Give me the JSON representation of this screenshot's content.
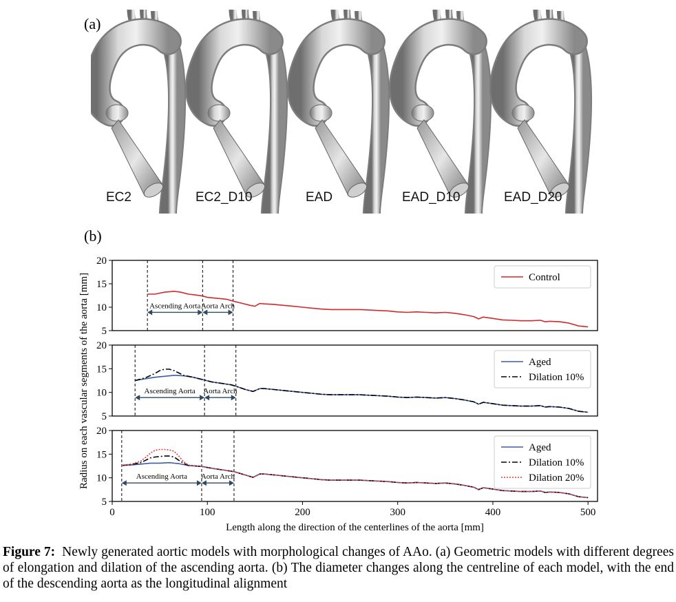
{
  "panel_a_label": "(a)",
  "panel_b_label": "(b)",
  "models": [
    "EC2",
    "EC2_D10",
    "EAD",
    "EAD_D10",
    "EAD_D20"
  ],
  "caption": {
    "figure_label": "Figure 7:",
    "text": "Newly generated aortic models with morphological changes of AAo. (a) Geometric models with different degrees of elongation and dilation of the ascending aorta. (b) The diameter changes along the centreline of each model, with the end of the descending aorta as the longitudinal alignment"
  },
  "chart_data": [
    {
      "type": "line",
      "xlim": [
        0,
        510
      ],
      "ylim": [
        5,
        20
      ],
      "yticks": [
        5,
        10,
        15,
        20
      ],
      "xticks": [],
      "grid": false,
      "legend_position": "top-right",
      "vlines": [
        37,
        95,
        127
      ],
      "annotations": [
        {
          "text": "Ascending Aorta",
          "x_from": 37,
          "x_to": 95
        },
        {
          "text": "Aorta Arch",
          "x_from": 95,
          "x_to": 127
        }
      ],
      "series": [
        {
          "name": "Control",
          "color": "#d62728",
          "style": "solid",
          "x": [
            37,
            45,
            55,
            65,
            72,
            80,
            88,
            95,
            100,
            110,
            120,
            127,
            135,
            145,
            150,
            155,
            160,
            170,
            180,
            190,
            200,
            210,
            220,
            230,
            240,
            250,
            260,
            270,
            280,
            290,
            300,
            310,
            320,
            330,
            340,
            350,
            360,
            370,
            380,
            385,
            390,
            400,
            410,
            420,
            430,
            440,
            450,
            455,
            460,
            470,
            480,
            490,
            500
          ],
          "y": [
            12.8,
            12.8,
            13.2,
            13.4,
            13.2,
            12.8,
            12.6,
            12.4,
            12.1,
            11.9,
            11.7,
            11.3,
            10.9,
            10.4,
            10.2,
            10.8,
            10.7,
            10.6,
            10.4,
            10.2,
            10.0,
            9.8,
            9.6,
            9.5,
            9.5,
            9.5,
            9.5,
            9.4,
            9.3,
            9.2,
            9.0,
            8.9,
            9.0,
            8.9,
            8.8,
            8.9,
            8.7,
            8.4,
            8.0,
            7.5,
            7.9,
            7.6,
            7.3,
            7.2,
            7.1,
            7.1,
            7.2,
            6.9,
            7.0,
            6.9,
            6.6,
            6.0,
            5.8
          ]
        }
      ]
    },
    {
      "type": "line",
      "xlim": [
        0,
        510
      ],
      "ylim": [
        5,
        20
      ],
      "yticks": [
        5,
        10,
        15,
        20
      ],
      "xticks": [],
      "grid": false,
      "legend_position": "top-right",
      "vlines": [
        24,
        97,
        130
      ],
      "annotations": [
        {
          "text": "Ascending Aorta",
          "x_from": 24,
          "x_to": 97
        },
        {
          "text": "Aorta Arch",
          "x_from": 97,
          "x_to": 130
        }
      ],
      "series": [
        {
          "name": "Aged",
          "color": "#3b5ba5",
          "style": "solid",
          "x": [
            24,
            35,
            45,
            55,
            65,
            75,
            85,
            97,
            105,
            115,
            125,
            130,
            140,
            148,
            155,
            160,
            170,
            180,
            190,
            200,
            210,
            220,
            230,
            240,
            250,
            260,
            270,
            280,
            290,
            300,
            310,
            320,
            330,
            340,
            350,
            360,
            370,
            380,
            385,
            390,
            400,
            410,
            420,
            430,
            440,
            450,
            455,
            460,
            470,
            480,
            490,
            500
          ],
          "y": [
            12.5,
            12.9,
            13.2,
            13.4,
            13.6,
            13.5,
            13.2,
            12.6,
            12.2,
            11.9,
            11.6,
            11.3,
            10.6,
            10.2,
            10.8,
            10.8,
            10.6,
            10.4,
            10.2,
            10.0,
            9.8,
            9.6,
            9.5,
            9.5,
            9.5,
            9.5,
            9.4,
            9.3,
            9.2,
            9.0,
            8.9,
            9.0,
            8.9,
            8.8,
            8.9,
            8.7,
            8.4,
            8.0,
            7.5,
            7.9,
            7.6,
            7.3,
            7.2,
            7.1,
            7.1,
            7.2,
            6.9,
            7.0,
            6.9,
            6.6,
            6.0,
            5.8
          ]
        },
        {
          "name": "Dilation 10%",
          "color": "#000000",
          "style": "dashdot",
          "x": [
            24,
            35,
            45,
            50,
            55,
            60,
            65,
            70,
            75,
            85,
            97,
            105,
            115,
            125,
            130,
            140,
            148,
            155,
            160,
            170,
            180,
            190,
            200,
            210,
            220,
            230,
            240,
            250,
            260,
            270,
            280,
            290,
            300,
            310,
            320,
            330,
            340,
            350,
            360,
            370,
            380,
            385,
            390,
            400,
            410,
            420,
            430,
            440,
            450,
            455,
            460,
            470,
            480,
            490,
            500
          ],
          "y": [
            12.5,
            13.1,
            14.0,
            14.6,
            14.9,
            14.9,
            14.6,
            14.1,
            13.6,
            13.2,
            12.6,
            12.2,
            11.9,
            11.6,
            11.3,
            10.6,
            10.2,
            10.8,
            10.8,
            10.6,
            10.4,
            10.2,
            10.0,
            9.8,
            9.6,
            9.5,
            9.5,
            9.5,
            9.5,
            9.4,
            9.3,
            9.2,
            9.0,
            8.9,
            9.0,
            8.9,
            8.8,
            8.9,
            8.7,
            8.4,
            8.0,
            7.5,
            7.9,
            7.6,
            7.3,
            7.2,
            7.1,
            7.1,
            7.2,
            6.9,
            7.0,
            6.9,
            6.6,
            6.0,
            5.8
          ]
        }
      ]
    },
    {
      "type": "line",
      "xlim": [
        0,
        510
      ],
      "ylim": [
        5,
        20
      ],
      "yticks": [
        5,
        10,
        15,
        20
      ],
      "xticks": [
        0,
        100,
        200,
        300,
        400,
        500
      ],
      "xlabel": "Length along the direction of the centerlines of the aorta [mm]",
      "grid": false,
      "legend_position": "top-right",
      "vlines": [
        10,
        94,
        128
      ],
      "annotations": [
        {
          "text": "Ascending Aorta",
          "x_from": 10,
          "x_to": 94
        },
        {
          "text": "Aorta Arch",
          "x_from": 94,
          "x_to": 128
        }
      ],
      "series": [
        {
          "name": "Aged",
          "color": "#3b5ba5",
          "style": "solid",
          "x": [
            10,
            20,
            30,
            40,
            50,
            60,
            70,
            80,
            94,
            105,
            115,
            128,
            138,
            148,
            155,
            160,
            170,
            180,
            190,
            200,
            210,
            220,
            230,
            240,
            250,
            260,
            270,
            280,
            290,
            300,
            310,
            320,
            330,
            340,
            350,
            360,
            370,
            380,
            385,
            390,
            400,
            410,
            420,
            430,
            440,
            450,
            455,
            460,
            470,
            480,
            490,
            500
          ],
          "y": [
            12.6,
            12.7,
            12.9,
            13.1,
            13.1,
            13.2,
            13.0,
            12.6,
            12.4,
            12.0,
            11.7,
            11.3,
            10.7,
            10.1,
            10.8,
            10.8,
            10.6,
            10.4,
            10.2,
            10.0,
            9.8,
            9.6,
            9.5,
            9.5,
            9.5,
            9.5,
            9.4,
            9.3,
            9.2,
            9.0,
            8.9,
            9.0,
            8.9,
            8.8,
            8.9,
            8.7,
            8.4,
            8.0,
            7.5,
            7.9,
            7.6,
            7.3,
            7.2,
            7.1,
            7.1,
            7.2,
            6.9,
            7.0,
            6.9,
            6.6,
            6.0,
            5.8
          ]
        },
        {
          "name": "Dilation 10%",
          "color": "#000000",
          "style": "dashdot",
          "x": [
            10,
            20,
            30,
            35,
            40,
            45,
            50,
            55,
            60,
            65,
            70,
            75,
            80,
            94,
            105,
            115,
            128,
            138,
            148,
            155,
            160,
            170,
            180,
            190,
            200,
            210,
            220,
            230,
            240,
            250,
            260,
            270,
            280,
            290,
            300,
            310,
            320,
            330,
            340,
            350,
            360,
            370,
            380,
            385,
            390,
            400,
            410,
            420,
            430,
            440,
            450,
            455,
            460,
            470,
            480,
            490,
            500
          ],
          "y": [
            12.6,
            12.8,
            13.2,
            13.7,
            14.2,
            14.4,
            14.5,
            14.6,
            14.6,
            14.4,
            13.7,
            13.1,
            12.6,
            12.4,
            12.0,
            11.7,
            11.3,
            10.7,
            10.1,
            10.8,
            10.8,
            10.6,
            10.4,
            10.2,
            10.0,
            9.8,
            9.6,
            9.5,
            9.5,
            9.5,
            9.5,
            9.4,
            9.3,
            9.2,
            9.0,
            8.9,
            9.0,
            8.9,
            8.8,
            8.9,
            8.7,
            8.4,
            8.0,
            7.5,
            7.9,
            7.6,
            7.3,
            7.2,
            7.1,
            7.1,
            7.2,
            6.9,
            7.0,
            6.9,
            6.6,
            6.0,
            5.8
          ]
        },
        {
          "name": "Dilation 20%",
          "color": "#e03a3a",
          "style": "dotted",
          "x": [
            10,
            20,
            30,
            35,
            40,
            45,
            50,
            55,
            60,
            65,
            70,
            75,
            80,
            94,
            105,
            115,
            128,
            138,
            148,
            155,
            160,
            170,
            180,
            190,
            200,
            210,
            220,
            230,
            240,
            250,
            260,
            270,
            280,
            290,
            300,
            310,
            320,
            330,
            340,
            350,
            360,
            370,
            380,
            385,
            390,
            400,
            410,
            420,
            430,
            440,
            450,
            455,
            460,
            470,
            480,
            490,
            500
          ],
          "y": [
            12.6,
            12.9,
            13.5,
            14.3,
            15.2,
            15.8,
            16.0,
            16.0,
            15.9,
            15.6,
            14.6,
            13.4,
            12.7,
            12.4,
            12.0,
            11.7,
            11.3,
            10.7,
            10.1,
            10.8,
            10.8,
            10.6,
            10.4,
            10.2,
            10.0,
            9.8,
            9.6,
            9.5,
            9.5,
            9.5,
            9.5,
            9.4,
            9.3,
            9.2,
            9.0,
            8.9,
            9.0,
            8.9,
            8.8,
            8.9,
            8.7,
            8.4,
            8.0,
            7.5,
            7.9,
            7.6,
            7.3,
            7.2,
            7.1,
            7.1,
            7.2,
            6.9,
            7.0,
            6.9,
            6.6,
            6.0,
            5.8
          ]
        }
      ]
    }
  ],
  "shared_ylabel": "Radius on each vascular segments of the aorta [mm]"
}
